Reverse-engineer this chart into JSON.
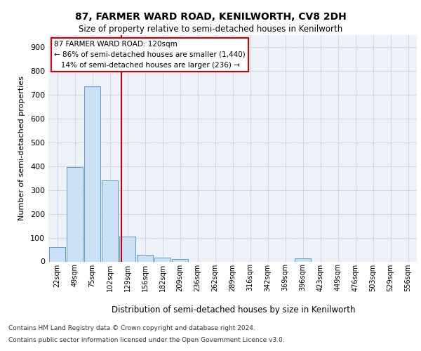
{
  "title1": "87, FARMER WARD ROAD, KENILWORTH, CV8 2DH",
  "title2": "Size of property relative to semi-detached houses in Kenilworth",
  "xlabel": "Distribution of semi-detached houses by size in Kenilworth",
  "ylabel": "Number of semi-detached properties",
  "categories": [
    "22sqm",
    "49sqm",
    "75sqm",
    "102sqm",
    "129sqm",
    "156sqm",
    "182sqm",
    "209sqm",
    "236sqm",
    "262sqm",
    "289sqm",
    "316sqm",
    "342sqm",
    "369sqm",
    "396sqm",
    "423sqm",
    "449sqm",
    "476sqm",
    "503sqm",
    "529sqm",
    "556sqm"
  ],
  "values": [
    60,
    395,
    735,
    340,
    105,
    28,
    15,
    10,
    0,
    0,
    0,
    0,
    0,
    0,
    12,
    0,
    0,
    0,
    0,
    0,
    0
  ],
  "bar_color": "#cce0f5",
  "bar_edge_color": "#5b9bd5",
  "marker_color": "#cc0000",
  "annotation_box_color": "#ffffff",
  "annotation_box_edge_color": "#cc0000",
  "grid_color": "#d0d8e8",
  "background_color": "#eef2f8",
  "ylim": [
    0,
    950
  ],
  "yticks": [
    0,
    100,
    200,
    300,
    400,
    500,
    600,
    700,
    800,
    900
  ],
  "marker_pct_smaller": "86% of semi-detached houses are smaller (1,440)",
  "marker_pct_larger": "14% of semi-detached houses are larger (236)",
  "footer1": "Contains HM Land Registry data © Crown copyright and database right 2024.",
  "footer2": "Contains public sector information licensed under the Open Government Licence v3.0."
}
